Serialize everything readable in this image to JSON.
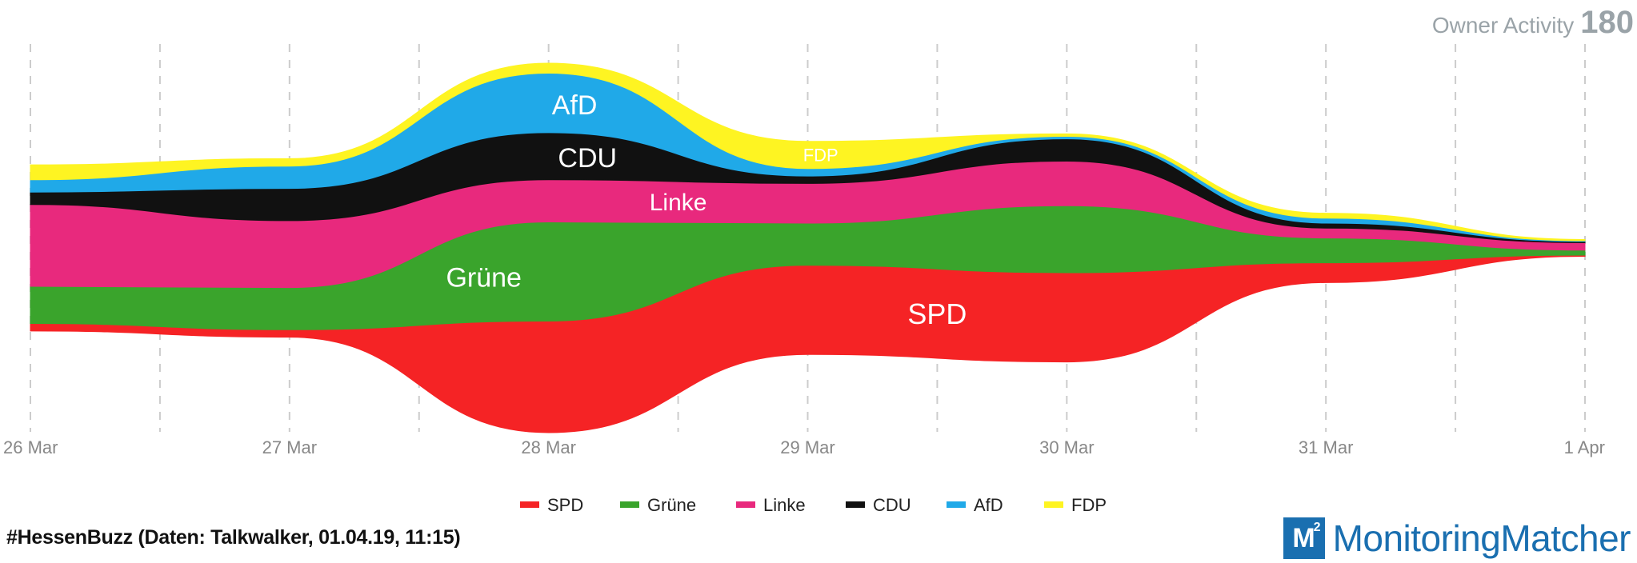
{
  "header": {
    "metric_label": "Owner Activity",
    "metric_value": "180"
  },
  "footer": {
    "source": "#HessenBuzz (Daten: Talkwalker, 01.04.19, 11:15)",
    "brand_logo": "M",
    "brand_logo_sup": "2",
    "brand_name": "MonitoringMatcher"
  },
  "chart_data": {
    "type": "streamgraph",
    "x": [
      "26 Mar",
      "27 Mar",
      "28 Mar",
      "29 Mar",
      "30 Mar",
      "31 Mar",
      "1 Apr"
    ],
    "stack_order_bottom_to_top": [
      "SPD",
      "Grüne",
      "Linke",
      "CDU",
      "AfD",
      "FDP"
    ],
    "legend_order": [
      "SPD",
      "Grüne",
      "Linke",
      "CDU",
      "AfD",
      "FDP"
    ],
    "series": [
      {
        "name": "SPD",
        "color": "#f52325",
        "values": [
          3,
          3,
          45,
          36,
          36,
          8,
          0.5
        ],
        "label_at_index": 3.5
      },
      {
        "name": "Grüne",
        "color": "#3aa42c",
        "values": [
          15,
          17,
          40,
          17,
          27,
          10,
          2
        ],
        "label_at_index": 1.75
      },
      {
        "name": "Linke",
        "color": "#e8297d",
        "values": [
          33,
          27,
          17,
          16,
          18,
          4,
          3
        ],
        "label_at_index": 2.5
      },
      {
        "name": "CDU",
        "color": "#111111",
        "values": [
          5,
          13,
          19,
          3,
          9,
          2,
          0.5
        ],
        "label_at_index": 2.15
      },
      {
        "name": "AfD",
        "color": "#20a9e8",
        "values": [
          5,
          9,
          24,
          3,
          1,
          2,
          0.3
        ],
        "label_at_index": 2.1
      },
      {
        "name": "FDP",
        "color": "#fef422",
        "values": [
          6,
          3,
          4,
          11,
          1,
          2,
          0.5
        ],
        "label_at_index": 3.05
      }
    ],
    "grid": true,
    "legend_position": "bottom"
  }
}
